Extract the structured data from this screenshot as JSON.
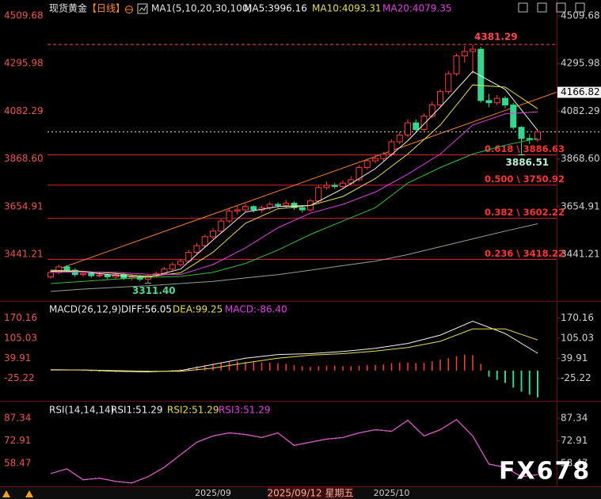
{
  "chart_data": [
    {
      "type": "candlestick",
      "title": "现货黄金",
      "subtitle": "【日线】",
      "indicator": "MA1(5,10,20,30,100)",
      "categories": [
        null,
        null,
        null,
        null,
        null,
        null,
        null,
        null,
        null,
        null,
        null,
        null,
        null,
        null,
        null,
        null,
        null,
        null,
        null,
        null,
        "2025/09",
        null,
        null,
        null,
        null,
        null,
        null,
        null,
        null,
        null,
        null,
        null,
        null,
        null,
        null,
        null,
        null,
        null,
        null,
        null,
        null,
        null,
        "2025/10",
        null,
        null,
        null,
        null,
        null,
        null,
        null,
        null,
        null,
        null,
        null,
        null,
        null,
        null,
        null,
        null,
        null,
        null
      ],
      "cursor_label": "2025/09/12 星期五",
      "open": [
        3340,
        3360,
        3385,
        3370,
        3350,
        3355,
        3345,
        3348,
        3340,
        3350,
        3335,
        3340,
        3330,
        3345,
        3355,
        3375,
        3395,
        3410,
        3450,
        3480,
        3520,
        3545,
        3590,
        3635,
        3640,
        3655,
        3640,
        3650,
        3665,
        3660,
        3670,
        3650,
        3640,
        3680,
        3740,
        3750,
        3745,
        3760,
        3775,
        3830,
        3860,
        3870,
        3890,
        3945,
        3975,
        4030,
        4000,
        4060,
        4110,
        4170,
        4250,
        4330,
        4350,
        4360,
        4130,
        4120,
        4140,
        4110,
        4010,
        3960,
        3955
      ],
      "high": [
        3372,
        3395,
        3392,
        3378,
        3366,
        3362,
        3358,
        3355,
        3360,
        3356,
        3350,
        3348,
        3352,
        3364,
        3384,
        3405,
        3420,
        3460,
        3492,
        3530,
        3560,
        3600,
        3646,
        3660,
        3668,
        3662,
        3660,
        3676,
        3674,
        3685,
        3678,
        3660,
        3690,
        3750,
        3768,
        3760,
        3772,
        3790,
        3840,
        3870,
        3885,
        3900,
        3955,
        3990,
        4045,
        4045,
        4072,
        4125,
        4180,
        4262,
        4340,
        4375,
        4381.29,
        4370,
        4160,
        4155,
        4150,
        4120,
        4015,
        3980,
        4000
      ],
      "low": [
        3332,
        3352,
        3360,
        3340,
        3342,
        3336,
        3338,
        3330,
        3332,
        3326,
        3325,
        3320,
        3311.4,
        3336,
        3348,
        3368,
        3386,
        3402,
        3442,
        3472,
        3510,
        3538,
        3582,
        3620,
        3628,
        3628,
        3630,
        3640,
        3648,
        3652,
        3640,
        3628,
        3632,
        3672,
        3730,
        3735,
        3736,
        3750,
        3768,
        3820,
        3850,
        3858,
        3880,
        3935,
        3965,
        3985,
        3995,
        4050,
        4100,
        4160,
        4240,
        4300,
        4250,
        4120,
        4100,
        4110,
        4095,
        4000,
        3886.51,
        3935,
        3945
      ],
      "close": [
        3360,
        3385,
        3370,
        3350,
        3355,
        3345,
        3348,
        3340,
        3350,
        3335,
        3340,
        3330,
        3345,
        3355,
        3375,
        3395,
        3410,
        3450,
        3480,
        3520,
        3545,
        3590,
        3635,
        3640,
        3655,
        3640,
        3650,
        3665,
        3660,
        3670,
        3650,
        3640,
        3680,
        3740,
        3750,
        3745,
        3760,
        3775,
        3830,
        3860,
        3870,
        3890,
        3945,
        3975,
        4030,
        4000,
        4060,
        4110,
        4170,
        4250,
        4330,
        4350,
        4360,
        4130,
        4120,
        4140,
        4110,
        4010,
        3960,
        3955,
        3990
      ],
      "up_color": "#ff3b3b",
      "down_color": "#36d48c",
      "ylim": [
        3239,
        4552
      ],
      "yticks": [
        4509.68,
        4295.98,
        4082.29,
        {
          "value": 3868.6,
          "label": "3868.60"
        },
        3654.91,
        3441.21
      ],
      "lines": [
        {
          "name": "MA5:3996.16",
          "color": "#f2f2f2",
          "x": [
            0,
            4,
            8,
            12,
            16,
            20,
            24,
            28,
            32,
            36,
            40,
            44,
            48,
            52,
            56,
            60
          ],
          "values": [
            3365,
            3362,
            3347,
            3338,
            3375,
            3505,
            3630,
            3655,
            3660,
            3735,
            3825,
            3950,
            4100,
            4260,
            4180,
            3996.16
          ]
        },
        {
          "name": "MA10:4093.31",
          "color": "#e8dc50",
          "x": [
            0,
            4,
            8,
            12,
            16,
            20,
            24,
            28,
            32,
            36,
            40,
            44,
            48,
            52,
            56,
            60
          ],
          "values": [
            3370,
            3365,
            3355,
            3342,
            3358,
            3450,
            3580,
            3645,
            3660,
            3700,
            3780,
            3890,
            4020,
            4200,
            4190,
            4093.31
          ]
        },
        {
          "name": "MA20:4079.35",
          "color": "#e040e0",
          "x": [
            0,
            4,
            8,
            12,
            16,
            20,
            24,
            28,
            32,
            36,
            40,
            44,
            48,
            52,
            56,
            60
          ],
          "values": [
            3360,
            3362,
            3360,
            3352,
            3350,
            3395,
            3470,
            3560,
            3625,
            3665,
            3720,
            3800,
            3890,
            4020,
            4070,
            4079.35
          ]
        },
        {
          "color": "#2fbf3a",
          "x": [
            0,
            4,
            8,
            12,
            16,
            20,
            24,
            28,
            32,
            36,
            40,
            44,
            48,
            52,
            56,
            60
          ],
          "values": [
            3310,
            3320,
            3330,
            3338,
            3342,
            3360,
            3400,
            3460,
            3530,
            3590,
            3650,
            3760,
            3830,
            3890,
            3930,
            3960
          ]
        },
        {
          "color": "#9a9a9a",
          "x": [
            0,
            4,
            8,
            12,
            16,
            20,
            24,
            28,
            32,
            36,
            40,
            44,
            48,
            52,
            56,
            60
          ],
          "values": [
            3275,
            3285,
            3293,
            3300,
            3310,
            3320,
            3335,
            3350,
            3370,
            3390,
            3410,
            3440,
            3475,
            3510,
            3545,
            3578
          ]
        }
      ],
      "trendlines": [
        {
          "color": "#f5821f",
          "x": [
            0,
            62.3
          ],
          "values": [
            3363,
            4166.82
          ]
        }
      ],
      "levels": [
        {
          "value": 3886.63,
          "label": "0.618 \\ 3886.63"
        },
        {
          "value": 3750.92,
          "label": "0.500 \\ 3750.92"
        },
        {
          "value": 3602.22,
          "label": "0.382 \\ 3602.22"
        },
        {
          "value": 3418.22,
          "label": "0.236 \\ 3418.22"
        }
      ],
      "level_color": "#d8202c",
      "annotations": [
        {
          "value": 4381.29,
          "label": "4381.29",
          "color": "#ff4a4a"
        },
        {
          "value": 3886.51,
          "label": "3886.51",
          "color": "#b8f0d0"
        },
        {
          "value": 3311.4,
          "label": "3311.40",
          "color": "#4ed88a"
        }
      ]
    },
    {
      "type": "macd",
      "title": "MACD(26,12,9)",
      "ylim": [
        -95.2,
        217.8
      ],
      "yticks": [
        170.16,
        105.03,
        39.91,
        -25.22
      ],
      "x": [
        0,
        4,
        8,
        12,
        16,
        20,
        24,
        28,
        32,
        36,
        40,
        44,
        48,
        52,
        56,
        60
      ],
      "series": [
        {
          "name": "DIFF:56.05",
          "color": "#f2f2f2",
          "values": [
            3,
            2,
            -2,
            -4,
            0,
            20,
            40,
            52,
            55,
            62,
            72,
            88,
            115,
            160,
            120,
            56.05
          ]
        },
        {
          "name": "DEA:99.25",
          "color": "#e8dc50",
          "values": [
            2,
            2,
            0,
            -2,
            -2,
            8,
            25,
            40,
            50,
            55,
            63,
            75,
            95,
            135,
            135,
            99.25
          ]
        }
      ],
      "histogram": {
        "name": "MACD:-86.40",
        "color": "#e040e0",
        "up_color": "#ff3b3b",
        "down_color": "#36d48c",
        "values": [
          2,
          1,
          0,
          0,
          -1,
          -2,
          -3,
          -3,
          -4,
          -4,
          -4,
          -4,
          -3,
          -2,
          0,
          2,
          4,
          8,
          14,
          18,
          22,
          26,
          30,
          30,
          28,
          28,
          26,
          26,
          24,
          22,
          18,
          14,
          12,
          14,
          16,
          16,
          14,
          14,
          16,
          18,
          18,
          20,
          24,
          26,
          26,
          24,
          26,
          30,
          36,
          40,
          46,
          52,
          50,
          22,
          -20,
          -30,
          -40,
          -55,
          -68,
          -78,
          -86.4
        ]
      }
    },
    {
      "type": "line",
      "title": "RSI(14,14,14)",
      "ylim": [
        43.8,
        97.5
      ],
      "yticks": [
        87.34,
        72.91,
        58.47
      ],
      "x": [
        0,
        2,
        4,
        6,
        8,
        10,
        12,
        14,
        16,
        18,
        20,
        22,
        24,
        26,
        28,
        30,
        32,
        34,
        36,
        38,
        40,
        42,
        44,
        46,
        48,
        50,
        52,
        54,
        56,
        58,
        60
      ],
      "series": [
        {
          "name": "RSI1:51.29",
          "color": "#f2f2f2",
          "values": [
            52,
            55,
            48,
            49,
            47,
            46,
            50,
            56,
            64,
            72,
            76,
            78,
            77,
            75,
            78,
            70,
            72,
            74,
            75,
            78,
            80,
            79,
            86,
            76,
            80,
            86.5,
            76,
            58,
            56,
            50,
            51.29
          ]
        },
        {
          "name": "RSI2:51.29",
          "color": "#e8dc50",
          "values": [
            52,
            55,
            48,
            49,
            47,
            46,
            50,
            56,
            64,
            72,
            76,
            78,
            77,
            75,
            78,
            70,
            72,
            74,
            75,
            78,
            80,
            79,
            86,
            76,
            80,
            86.5,
            76,
            58,
            56,
            50,
            51.29
          ]
        },
        {
          "name": "RSI3:51.29",
          "color": "#e040e0",
          "values": [
            52,
            55,
            48,
            49,
            47,
            46,
            50,
            56,
            64,
            72,
            76,
            78,
            77,
            75,
            78,
            70,
            72,
            74,
            75,
            78,
            80,
            79,
            86,
            76,
            80,
            86.5,
            76,
            58,
            56,
            50,
            51.29
          ]
        }
      ]
    }
  ],
  "watermark": "FX678"
}
